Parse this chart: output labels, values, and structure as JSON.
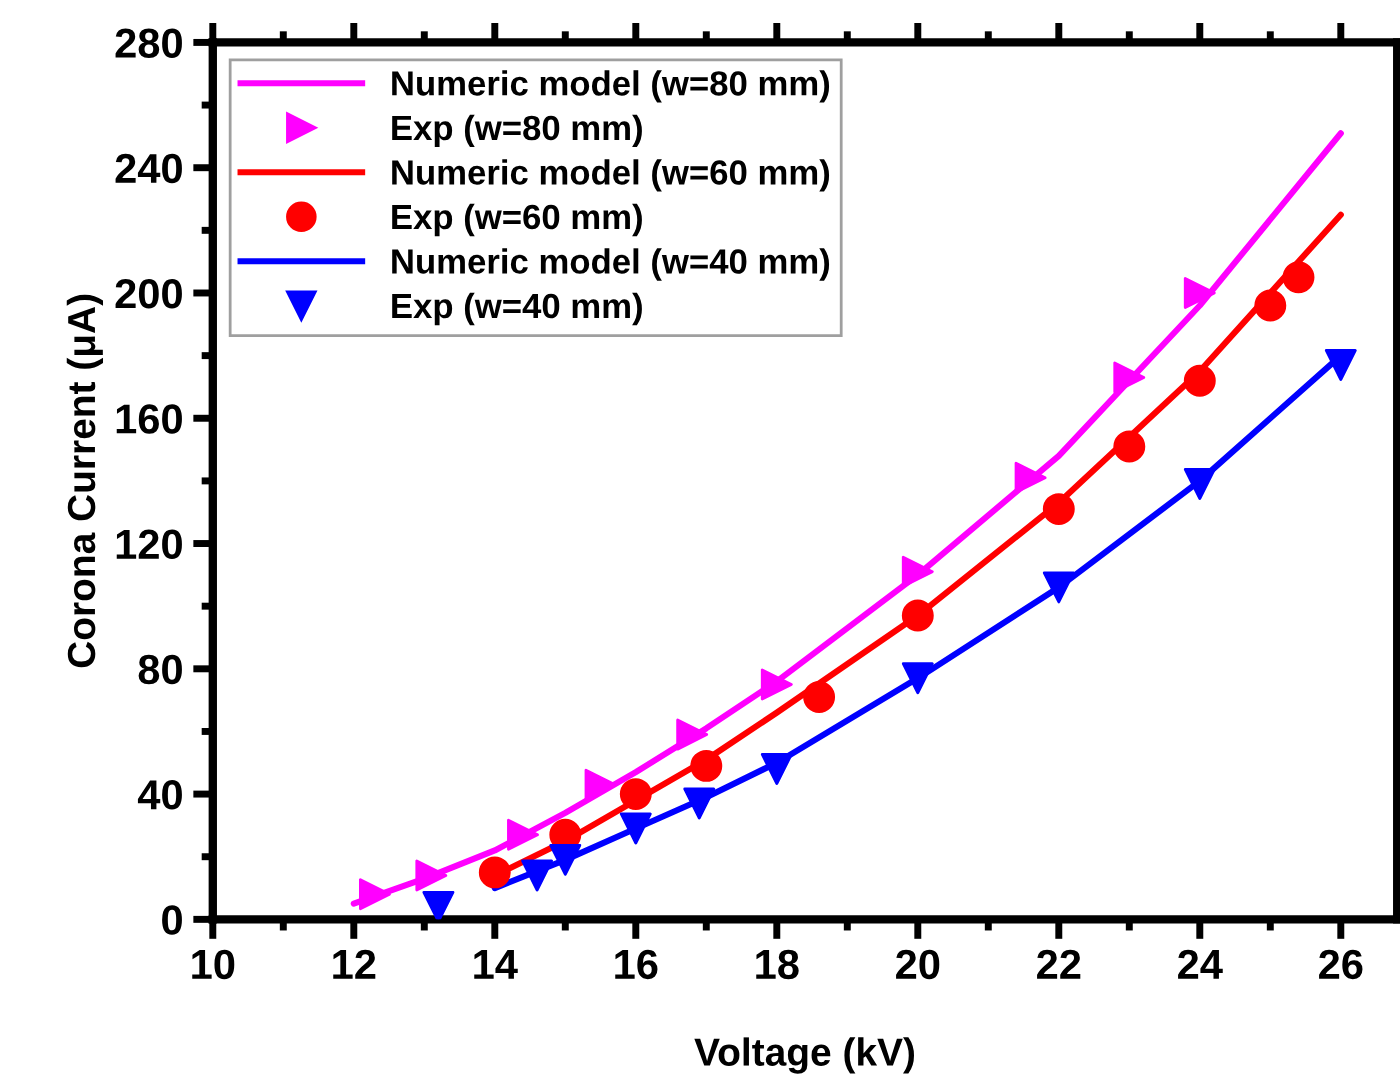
{
  "chart_data": {
    "type": "line",
    "xlabel": "Voltage (kV)",
    "ylabel": "Corona Current (μA)",
    "xlim": [
      10,
      26.8
    ],
    "xticks": [
      10,
      12,
      14,
      16,
      18,
      20,
      22,
      24,
      26
    ],
    "ylim": [
      0,
      280
    ],
    "yticks": [
      0,
      40,
      80,
      120,
      160,
      200,
      240,
      280
    ],
    "grid": false,
    "legend": "top left",
    "series": [
      {
        "name": "Numeric model (w=80 mm)",
        "color": "#ff00ff",
        "marker": "none",
        "x": [
          12,
          13,
          14,
          15,
          16,
          17,
          18,
          20,
          22,
          24,
          26
        ],
        "values": [
          5,
          13,
          22,
          34,
          47,
          61,
          76,
          110,
          148,
          196,
          251
        ]
      },
      {
        "name": "Exp (w=80 mm)",
        "type": "scatter",
        "color": "#ff00ff",
        "marker": "triangle-right",
        "x": [
          12.3,
          13.1,
          14.4,
          15.5,
          16.8,
          18,
          20,
          21.6,
          23,
          24
        ],
        "values": [
          8,
          14,
          27,
          43,
          59,
          75,
          111,
          141,
          173,
          200
        ]
      },
      {
        "name": "Numeric model (w=60 mm)",
        "color": "#ff0000",
        "marker": "none",
        "x": [
          14,
          15,
          16,
          17,
          18,
          20,
          22,
          24,
          26
        ],
        "values": [
          14,
          25,
          38,
          51,
          66,
          97,
          133,
          175,
          225
        ]
      },
      {
        "name": "Exp (w=60 mm)",
        "type": "scatter",
        "color": "#ff0000",
        "marker": "circle",
        "x": [
          14,
          15,
          16,
          17,
          18.6,
          20,
          22,
          23,
          24,
          25,
          25.4
        ],
        "values": [
          15,
          27,
          40,
          49,
          71,
          97,
          131,
          151,
          172,
          196,
          205
        ]
      },
      {
        "name": "Numeric model (w=40 mm)",
        "color": "#0000ff",
        "marker": "none",
        "x": [
          14,
          15,
          16,
          17,
          18,
          20,
          22,
          24,
          26
        ],
        "values": [
          10,
          19,
          29,
          39,
          50,
          77,
          106,
          140,
          180
        ]
      },
      {
        "name": "Exp (w=40 mm)",
        "type": "scatter",
        "color": "#0000ff",
        "marker": "triangle",
        "x": [
          13.2,
          14.6,
          15,
          16,
          16.9,
          18,
          20,
          22,
          24,
          26
        ],
        "values": [
          4,
          14,
          19,
          29,
          37,
          48,
          77,
          106,
          139,
          177
        ]
      }
    ]
  }
}
